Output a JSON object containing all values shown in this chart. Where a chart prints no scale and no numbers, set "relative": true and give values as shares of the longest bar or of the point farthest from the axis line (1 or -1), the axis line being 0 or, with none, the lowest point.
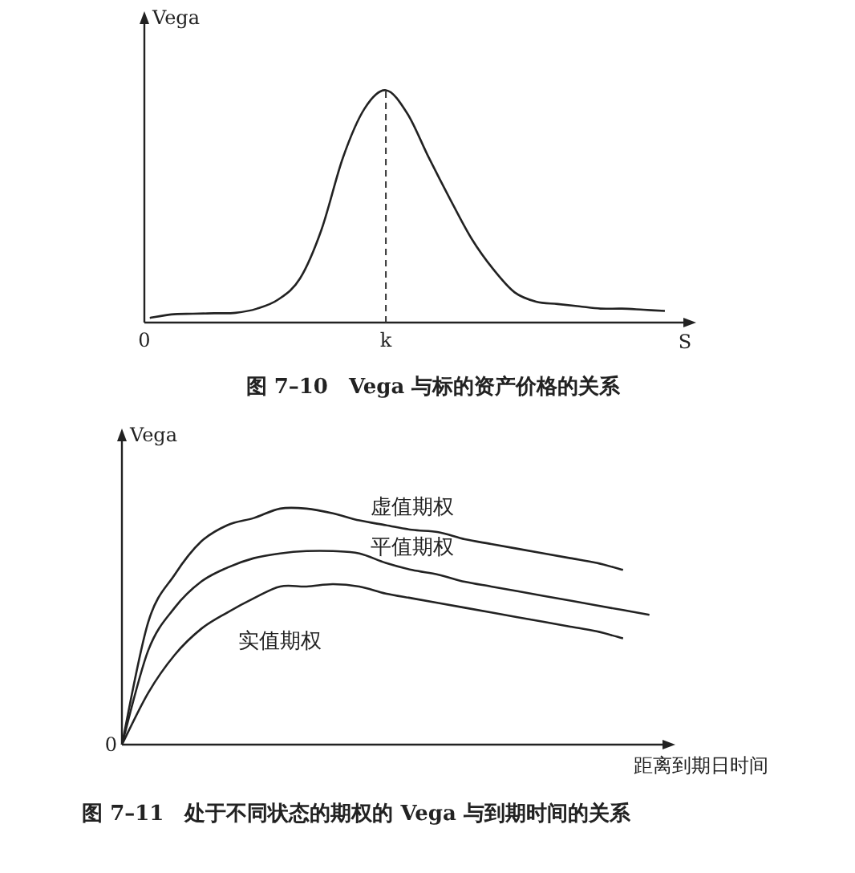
{
  "chart_data": [
    {
      "type": "line",
      "title": "图 7–10　Vega 与标的资产价格的关系",
      "ylabel": "Vega",
      "xlabel": "S",
      "relative": true,
      "grid": false,
      "annotations": [
        "0",
        "k"
      ],
      "categories": [
        null,
        null,
        null,
        null,
        null,
        null,
        null,
        null,
        null,
        null,
        null,
        null,
        null,
        null,
        null,
        null,
        null,
        null,
        null,
        null,
        null,
        null,
        null,
        null,
        null
      ],
      "series": [
        {
          "color": "#222222",
          "values": [
            0.02,
            0.035,
            0.038,
            0.04,
            0.042,
            0.06,
            0.1,
            0.19,
            0.4,
            0.71,
            0.92,
            1,
            0.9,
            0.71,
            0.53,
            0.36,
            0.23,
            0.13,
            0.09,
            0.08,
            0.07,
            0.06,
            0.06,
            0.055,
            0.05
          ]
        }
      ]
    },
    {
      "type": "line",
      "title": "图 7–11　处于不同状态的期权的 Vega 与到期时间的关系",
      "ylabel": "Vega",
      "xlabel": "距离到期日时间",
      "relative": true,
      "grid": false,
      "annotations": [
        "0"
      ],
      "categories": [
        null,
        null,
        null,
        null,
        null,
        null,
        null,
        null,
        null,
        null,
        null,
        null,
        null,
        null,
        null,
        null,
        null,
        null,
        null,
        null,
        null
      ],
      "series": [
        {
          "name": "虚值期权",
          "color": "#222222",
          "values": [
            0,
            0.52,
            0.72,
            0.86,
            0.93,
            0.96,
            1.0,
            1.0,
            0.98,
            0.95,
            0.93,
            0.91,
            0.9,
            0.87,
            0.85,
            0.83,
            0.81,
            0.79,
            0.77,
            0.74,
            null
          ]
        },
        {
          "name": "平值期权",
          "color": "#222222",
          "values": [
            0,
            0.4,
            0.58,
            0.69,
            0.75,
            0.79,
            0.81,
            0.82,
            0.82,
            0.81,
            0.77,
            0.74,
            0.72,
            0.69,
            0.67,
            0.65,
            0.63,
            0.61,
            0.59,
            0.57,
            0.55
          ]
        },
        {
          "name": "实值期权",
          "color": "#222222",
          "values": [
            0,
            0.22,
            0.38,
            0.49,
            0.56,
            0.62,
            0.67,
            0.67,
            0.68,
            0.67,
            0.64,
            0.62,
            0.6,
            0.58,
            0.56,
            0.54,
            0.52,
            0.5,
            0.48,
            0.45,
            null
          ]
        }
      ]
    }
  ]
}
